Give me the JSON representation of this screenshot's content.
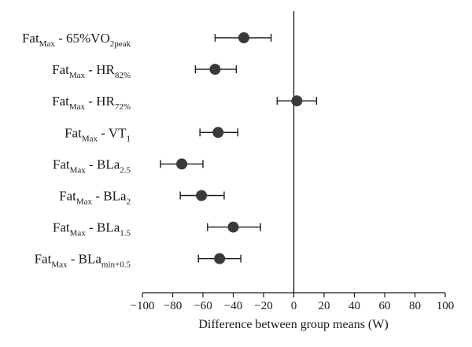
{
  "chart_data": {
    "type": "forest",
    "xlabel": "Difference between group means (W)",
    "xlim": [
      -100,
      100
    ],
    "xticks": [
      -100,
      -80,
      -60,
      -40,
      -20,
      0,
      20,
      40,
      60,
      80,
      100
    ],
    "reference_line": 0,
    "rows": [
      {
        "label": "Fat",
        "label_sub": "Max",
        "label_rest": " - 65%VO",
        "label_sub2": "2peak",
        "mean": -33,
        "lower": -52,
        "upper": -15
      },
      {
        "label": "Fat",
        "label_sub": "Max",
        "label_rest": " - HR",
        "label_sub2": "82%",
        "mean": -52,
        "lower": -65,
        "upper": -38
      },
      {
        "label": "Fat",
        "label_sub": "Max",
        "label_rest": " - HR",
        "label_sub2": "72%",
        "mean": 2,
        "lower": -11,
        "upper": 15
      },
      {
        "label": "Fat",
        "label_sub": "Max",
        "label_rest": " - VT",
        "label_sub2": "1",
        "mean": -50,
        "lower": -62,
        "upper": -37
      },
      {
        "label": "Fat",
        "label_sub": "Max",
        "label_rest": " - BLa",
        "label_sub2": "2.5",
        "mean": -74,
        "lower": -88,
        "upper": -60
      },
      {
        "label": "Fat",
        "label_sub": "Max",
        "label_rest": " - BLa",
        "label_sub2": "2",
        "mean": -61,
        "lower": -75,
        "upper": -46
      },
      {
        "label": "Fat",
        "label_sub": "Max",
        "label_rest": " - BLa",
        "label_sub2": "1.5",
        "mean": -40,
        "lower": -57,
        "upper": -22
      },
      {
        "label": "Fat",
        "label_sub": "Max",
        "label_rest": " - BLa",
        "label_sub2": "min+0.5",
        "mean": -49,
        "lower": -63,
        "upper": -35
      }
    ]
  }
}
